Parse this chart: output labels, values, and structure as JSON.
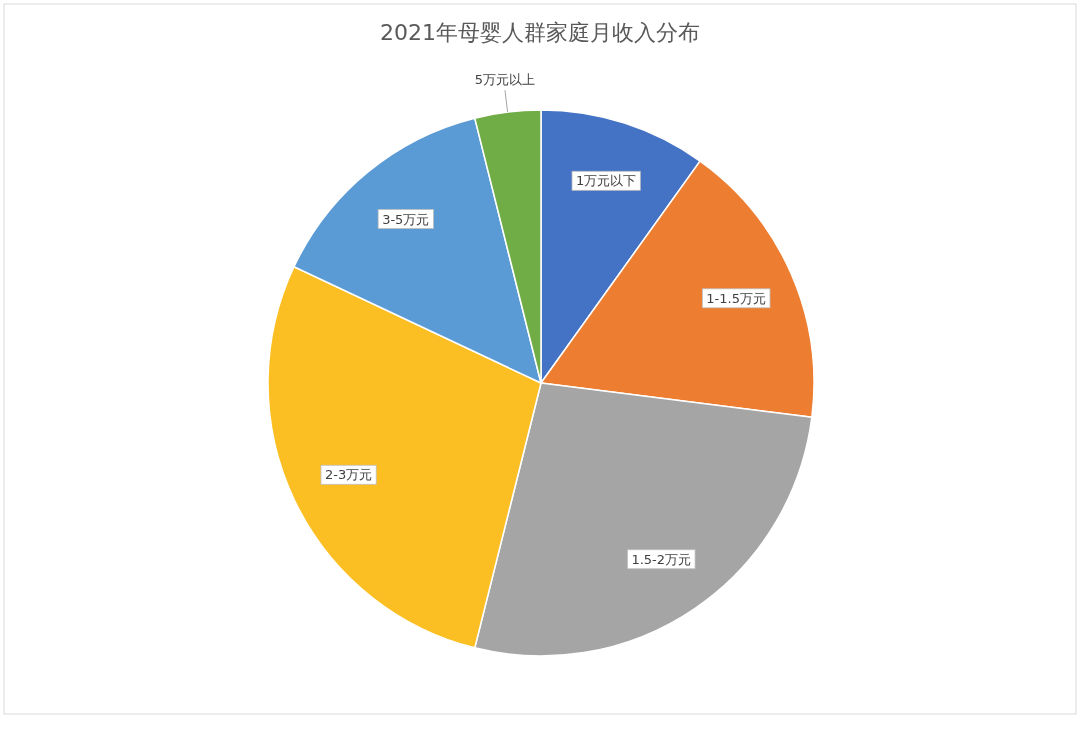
{
  "chart_data": {
    "type": "pie",
    "title": "2021年母婴人群家庭月收入分布",
    "categories": [
      "1万元以下",
      "1-1.5万元",
      "1.5-2万元",
      "2-3万元",
      "3-5万元",
      "5万元以上"
    ],
    "values": [
      9.9,
      17.1,
      26.9,
      28.1,
      14.1,
      3.9
    ],
    "colors": [
      "#4472c4",
      "#ed7d31",
      "#a5a5a5",
      "#fbbf24",
      "#5b9bd5",
      "#70ad47"
    ]
  }
}
